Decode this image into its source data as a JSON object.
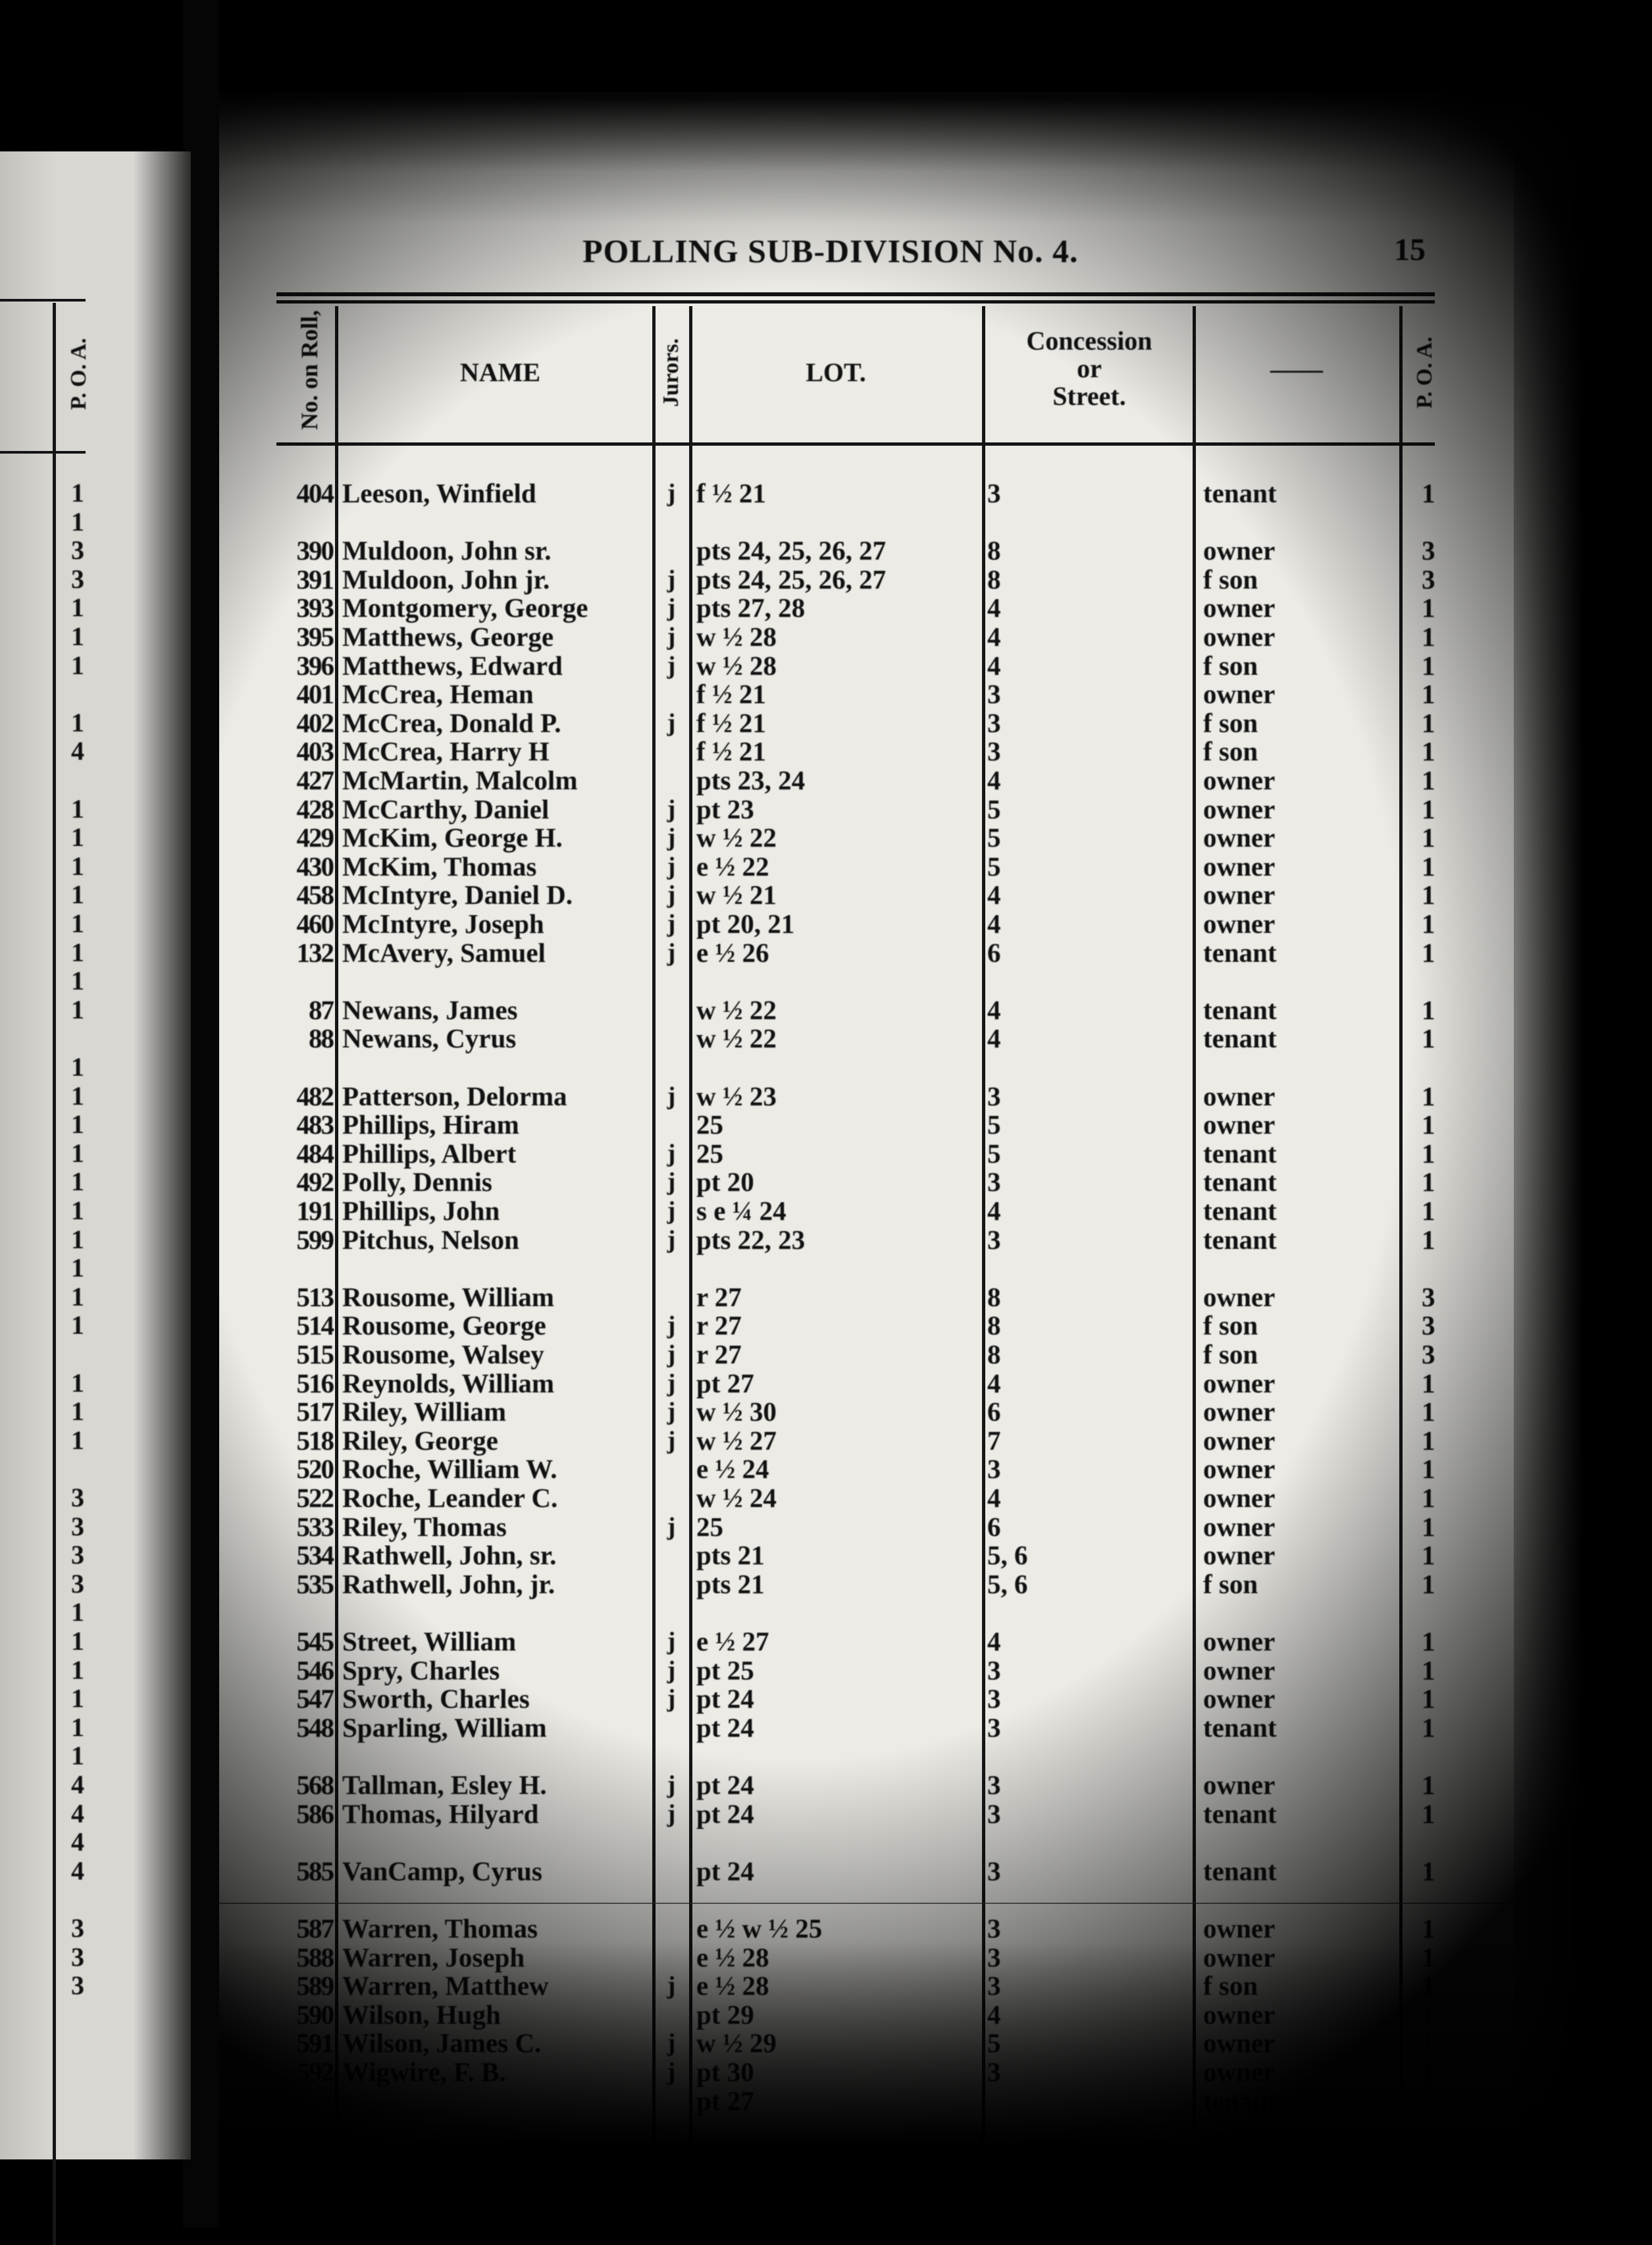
{
  "header": {
    "title": "POLLING SUB-DIVISION No. 4.",
    "page_number": "15"
  },
  "columns": {
    "roll": "No. on Roll,",
    "name": "NAME",
    "jurors": "Jurors.",
    "lot": "LOT.",
    "concession_l1": "Concession",
    "concession_l2": "or",
    "concession_l3": "Street.",
    "blank": "——",
    "poa": "P. O. A."
  },
  "left_page": {
    "poa_header": "P. O. A.",
    "poa_values": [
      "1",
      "1",
      "3",
      "3",
      "1",
      "1",
      "1",
      "1",
      "4",
      "1",
      "1",
      "1",
      "1",
      "1",
      "1",
      "1",
      "1",
      "1",
      "1",
      "1",
      "1",
      "1",
      "1",
      "1",
      "1",
      "1",
      "1",
      "1",
      "1",
      "1",
      "3",
      "3",
      "3",
      "3",
      "1",
      "1",
      "1",
      "1",
      "1",
      "1",
      "4",
      "4",
      "4",
      "4",
      "3",
      "3",
      "3"
    ]
  },
  "groups": [
    [
      {
        "roll": "404",
        "name": "Leeson, Winfield",
        "juror": "j",
        "lot": "f ½ 21",
        "conc": "3",
        "status": "tenant",
        "poa": "1"
      }
    ],
    [
      {
        "roll": "390",
        "name": "Muldoon, John sr.",
        "juror": "",
        "lot": "pts 24, 25, 26, 27",
        "conc": "8",
        "status": "owner",
        "poa": "3"
      },
      {
        "roll": "391",
        "name": "Muldoon, John jr.",
        "juror": "j",
        "lot": "pts 24, 25, 26, 27",
        "conc": "8",
        "status": "f son",
        "poa": "3"
      },
      {
        "roll": "393",
        "name": "Montgomery, George",
        "juror": "j",
        "lot": "pts 27, 28",
        "conc": "4",
        "status": "owner",
        "poa": "1"
      },
      {
        "roll": "395",
        "name": "Matthews, George",
        "juror": "j",
        "lot": "w ½ 28",
        "conc": "4",
        "status": "owner",
        "poa": "1"
      },
      {
        "roll": "396",
        "name": "Matthews, Edward",
        "juror": "j",
        "lot": "w ½ 28",
        "conc": "4",
        "status": "f son",
        "poa": "1"
      },
      {
        "roll": "401",
        "name": "McCrea, Heman",
        "juror": "",
        "lot": "f ½ 21",
        "conc": "3",
        "status": "owner",
        "poa": "1"
      },
      {
        "roll": "402",
        "name": "McCrea, Donald P.",
        "juror": "j",
        "lot": "f ½ 21",
        "conc": "3",
        "status": "f son",
        "poa": "1"
      },
      {
        "roll": "403",
        "name": "McCrea, Harry H",
        "juror": "",
        "lot": "f ½ 21",
        "conc": "3",
        "status": "f son",
        "poa": "1"
      },
      {
        "roll": "427",
        "name": "McMartin, Malcolm",
        "juror": "",
        "lot": "pts 23, 24",
        "conc": "4",
        "status": "owner",
        "poa": "1"
      },
      {
        "roll": "428",
        "name": "McCarthy, Daniel",
        "juror": "j",
        "lot": "pt 23",
        "conc": "5",
        "status": "owner",
        "poa": "1"
      },
      {
        "roll": "429",
        "name": "McKim, George H.",
        "juror": "j",
        "lot": "w ½ 22",
        "conc": "5",
        "status": "owner",
        "poa": "1"
      },
      {
        "roll": "430",
        "name": "McKim, Thomas",
        "juror": "j",
        "lot": "e ½ 22",
        "conc": "5",
        "status": "owner",
        "poa": "1"
      },
      {
        "roll": "458",
        "name": "McIntyre, Daniel D.",
        "juror": "j",
        "lot": "w ½ 21",
        "conc": "4",
        "status": "owner",
        "poa": "1"
      },
      {
        "roll": "460",
        "name": "McIntyre, Joseph",
        "juror": "j",
        "lot": "pt 20, 21",
        "conc": "4",
        "status": "owner",
        "poa": "1"
      },
      {
        "roll": "132",
        "name": "McAvery, Samuel",
        "juror": "j",
        "lot": "e ½ 26",
        "conc": "6",
        "status": "tenant",
        "poa": "1"
      }
    ],
    [
      {
        "roll": "87",
        "name": "Newans, James",
        "juror": "",
        "lot": "w ½ 22",
        "conc": "4",
        "status": "tenant",
        "poa": "1"
      },
      {
        "roll": "88",
        "name": "Newans, Cyrus",
        "juror": "",
        "lot": "w ½ 22",
        "conc": "4",
        "status": "tenant",
        "poa": "1"
      }
    ],
    [
      {
        "roll": "482",
        "name": "Patterson, Delorma",
        "juror": "j",
        "lot": "w ½ 23",
        "conc": "3",
        "status": "owner",
        "poa": "1"
      },
      {
        "roll": "483",
        "name": "Phillips, Hiram",
        "juror": "",
        "lot": "25",
        "conc": "5",
        "status": "owner",
        "poa": "1"
      },
      {
        "roll": "484",
        "name": "Phillips, Albert",
        "juror": "j",
        "lot": "25",
        "conc": "5",
        "status": "tenant",
        "poa": "1"
      },
      {
        "roll": "492",
        "name": "Polly, Dennis",
        "juror": "j",
        "lot": "pt 20",
        "conc": "3",
        "status": "tenant",
        "poa": "1"
      },
      {
        "roll": "191",
        "name": "Phillips, John",
        "juror": "j",
        "lot": "s e ¼ 24",
        "conc": "4",
        "status": "tenant",
        "poa": "1"
      },
      {
        "roll": "599",
        "name": "Pitchus, Nelson",
        "juror": "j",
        "lot": "pts 22, 23",
        "conc": "3",
        "status": "tenant",
        "poa": "1"
      }
    ],
    [
      {
        "roll": "513",
        "name": "Rousome, William",
        "juror": "",
        "lot": "r 27",
        "conc": "8",
        "status": "owner",
        "poa": "3"
      },
      {
        "roll": "514",
        "name": "Rousome, George",
        "juror": "j",
        "lot": "r 27",
        "conc": "8",
        "status": "f son",
        "poa": "3"
      },
      {
        "roll": "515",
        "name": "Rousome, Walsey",
        "juror": "j",
        "lot": "r 27",
        "conc": "8",
        "status": "f son",
        "poa": "3"
      },
      {
        "roll": "516",
        "name": "Reynolds, William",
        "juror": "j",
        "lot": "pt 27",
        "conc": "4",
        "status": "owner",
        "poa": "1"
      },
      {
        "roll": "517",
        "name": "Riley, William",
        "juror": "j",
        "lot": "w ½ 30",
        "conc": "6",
        "status": "owner",
        "poa": "1"
      },
      {
        "roll": "518",
        "name": "Riley, George",
        "juror": "j",
        "lot": "w ½ 27",
        "conc": "7",
        "status": "owner",
        "poa": "1"
      },
      {
        "roll": "520",
        "name": "Roche, William W.",
        "juror": "",
        "lot": "e ½ 24",
        "conc": "3",
        "status": "owner",
        "poa": "1"
      },
      {
        "roll": "522",
        "name": "Roche, Leander C.",
        "juror": "",
        "lot": "w ½ 24",
        "conc": "4",
        "status": "owner",
        "poa": "1"
      },
      {
        "roll": "533",
        "name": "Riley, Thomas",
        "juror": "j",
        "lot": "25",
        "conc": "6",
        "status": "owner",
        "poa": "1"
      },
      {
        "roll": "534",
        "name": "Rathwell, John, sr.",
        "juror": "",
        "lot": "pts 21",
        "conc": "5, 6",
        "status": "owner",
        "poa": "1"
      },
      {
        "roll": "535",
        "name": "Rathwell, John, jr.",
        "juror": "",
        "lot": "pts 21",
        "conc": "5, 6",
        "status": "f son",
        "poa": "1"
      }
    ],
    [
      {
        "roll": "545",
        "name": "Street, William",
        "juror": "j",
        "lot": "e ½ 27",
        "conc": "4",
        "status": "owner",
        "poa": "1"
      },
      {
        "roll": "546",
        "name": "Spry, Charles",
        "juror": "j",
        "lot": "pt 25",
        "conc": "3",
        "status": "owner",
        "poa": "1"
      },
      {
        "roll": "547",
        "name": "Sworth, Charles",
        "juror": "j",
        "lot": "pt 24",
        "conc": "3",
        "status": "owner",
        "poa": "1"
      },
      {
        "roll": "548",
        "name": "Sparling, William",
        "juror": "",
        "lot": "pt 24",
        "conc": "3",
        "status": "tenant",
        "poa": "1"
      }
    ],
    [
      {
        "roll": "568",
        "name": "Tallman, Esley H.",
        "juror": "j",
        "lot": "pt 24",
        "conc": "3",
        "status": "owner",
        "poa": "1"
      },
      {
        "roll": "586",
        "name": "Thomas, Hilyard",
        "juror": "j",
        "lot": "pt 24",
        "conc": "3",
        "status": "tenant",
        "poa": "1"
      }
    ],
    [
      {
        "roll": "585",
        "name": "VanCamp, Cyrus",
        "juror": "",
        "lot": "pt 24",
        "conc": "3",
        "status": "tenant",
        "poa": "1"
      }
    ],
    [
      {
        "roll": "587",
        "name": "Warren, Thomas",
        "juror": "",
        "lot": "e ½ w ½ 25",
        "conc": "3",
        "status": "owner",
        "poa": "1"
      },
      {
        "roll": "588",
        "name": "Warren, Joseph",
        "juror": "",
        "lot": "e ½ 28",
        "conc": "3",
        "status": "owner",
        "poa": "1"
      },
      {
        "roll": "589",
        "name": "Warren, Matthew",
        "juror": "j",
        "lot": "e ½ 28",
        "conc": "3",
        "status": "f son",
        "poa": "1"
      },
      {
        "roll": "590",
        "name": "Wilson, Hugh",
        "juror": "",
        "lot": "pt 29",
        "conc": "4",
        "status": "owner",
        "poa": "1"
      },
      {
        "roll": "591",
        "name": "Wilson, James C.",
        "juror": "j",
        "lot": "w ½ 29",
        "conc": "5",
        "status": "owner",
        "poa": "1"
      },
      {
        "roll": "592",
        "name": "Wigwire, F. B.",
        "juror": "j",
        "lot": "pt 30",
        "conc": "3",
        "status": "owner",
        "poa": "1"
      },
      {
        "roll": "",
        "name": "",
        "juror": "",
        "lot": "pt 27",
        "conc": "",
        "status": "tenant",
        "poa": "1"
      }
    ]
  ]
}
